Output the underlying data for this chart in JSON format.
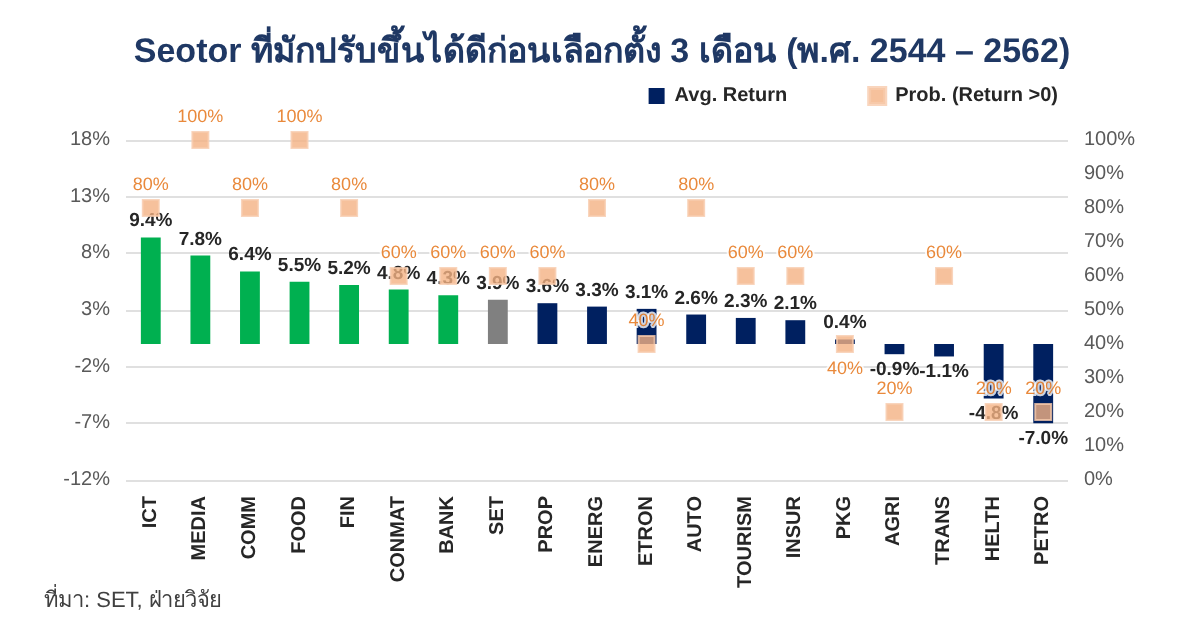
{
  "chart_data": {
    "type": "bar",
    "title": "Seotor ที่มักปรับขึ้นได้ดีก่อนเลือกตั้ง 3 เดือน (พ.ศ. 2544 – 2562)",
    "categories": [
      "ICT",
      "MEDIA",
      "COMM",
      "FOOD",
      "FIN",
      "CONMAT",
      "BANK",
      "SET",
      "PROP",
      "ENERG",
      "ETRON",
      "AUTO",
      "TOURISM",
      "INSUR",
      "PKG",
      "AGRI",
      "TRANS",
      "HELTH",
      "PETRO"
    ],
    "series": [
      {
        "name": "Avg. Return",
        "color": "#002060",
        "colors": [
          "#00b050",
          "#00b050",
          "#00b050",
          "#00b050",
          "#00b050",
          "#00b050",
          "#00b050",
          "#808080",
          "#002060",
          "#002060",
          "#002060",
          "#002060",
          "#002060",
          "#002060",
          "#002060",
          "#002060",
          "#002060",
          "#002060",
          "#002060"
        ],
        "values": [
          9.4,
          7.8,
          6.4,
          5.5,
          5.2,
          4.8,
          4.3,
          3.9,
          3.6,
          3.3,
          3.1,
          2.6,
          2.3,
          2.1,
          0.4,
          -0.9,
          -1.1,
          -4.8,
          -7.0
        ],
        "value_labels": [
          "9.4%",
          "7.8%",
          "6.4%",
          "5.5%",
          "5.2%",
          "4.8%",
          "4.3%",
          "3.9%",
          "3.6%",
          "3.3%",
          "3.1%",
          "2.6%",
          "2.3%",
          "2.1%",
          "0.4%",
          "-0.9%",
          "-1.1%",
          "-4.8%",
          "-7.0%"
        ]
      },
      {
        "name": "Prob. (Return >0)",
        "type": "scatter",
        "axis": "y2",
        "color": "#f4b183",
        "values": [
          80,
          100,
          80,
          100,
          80,
          60,
          60,
          60,
          60,
          80,
          40,
          80,
          60,
          60,
          40,
          20,
          60,
          20,
          20
        ],
        "value_labels": [
          "80%",
          "100%",
          "80%",
          "100%",
          "80%",
          "60%",
          "60%",
          "60%",
          "60%",
          "80%",
          "40%",
          "80%",
          "60%",
          "60%",
          "40%",
          "20%",
          "60%",
          "20%",
          "20%"
        ]
      }
    ],
    "ylim": [
      -12,
      18
    ],
    "yticks": [
      {
        "value": -12,
        "label": "-12%"
      },
      {
        "value": -7,
        "label": "-7%"
      },
      {
        "value": -2,
        "label": "-2%"
      },
      {
        "value": 3,
        "label": "3%"
      },
      {
        "value": 8,
        "label": "8%"
      },
      {
        "value": 13,
        "label": "13%"
      },
      {
        "value": 18,
        "label": "18%"
      }
    ],
    "y2lim": [
      0,
      100
    ],
    "y2ticks": [
      {
        "value": 0,
        "label": "0%"
      },
      {
        "value": 10,
        "label": "10%"
      },
      {
        "value": 20,
        "label": "20%"
      },
      {
        "value": 30,
        "label": "30%"
      },
      {
        "value": 40,
        "label": "40%"
      },
      {
        "value": 50,
        "label": "50%"
      },
      {
        "value": 60,
        "label": "60%"
      },
      {
        "value": 70,
        "label": "70%"
      },
      {
        "value": 80,
        "label": "80%"
      },
      {
        "value": 90,
        "label": "90%"
      },
      {
        "value": 100,
        "label": "100%"
      }
    ],
    "marker": "square",
    "grid": "y",
    "legend": "top right",
    "annotations": [
      "ที่มา: SET, ฝ่ายวิจัย"
    ]
  }
}
